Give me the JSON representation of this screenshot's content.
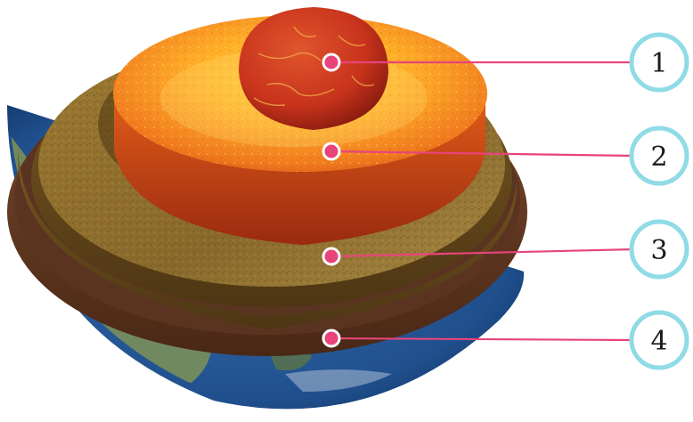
{
  "diagram": {
    "colors": {
      "inner_core": "#c8331c",
      "outer_core": "#f07a1e",
      "mantle": "#8a6a2c",
      "crust": "#6b3f26",
      "ocean": "#1f4f8c",
      "land": "#7a8f5a",
      "leader": "#e8447a",
      "badge_ring": "#8fdbe6"
    },
    "callouts": [
      {
        "number": "1"
      },
      {
        "number": "2"
      },
      {
        "number": "3"
      },
      {
        "number": "4"
      }
    ]
  }
}
